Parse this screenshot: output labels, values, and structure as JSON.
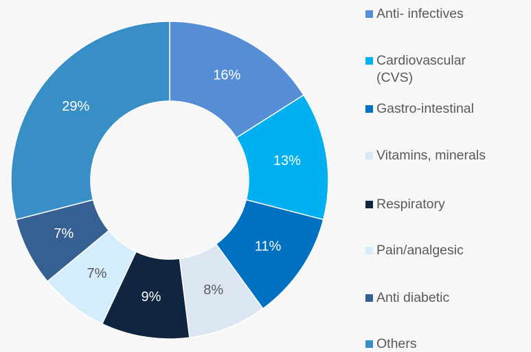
{
  "chart_data": {
    "type": "donut",
    "categories": [
      "Anti- infectives",
      "Cardiovascular (CVS)",
      "Gastro-intestinal",
      "Vitamins, minerals",
      "Respiratory",
      "Pain/analgesic",
      "Anti diabetic",
      "Others"
    ],
    "values": [
      16,
      13,
      11,
      8,
      9,
      7,
      7,
      29
    ],
    "value_labels": [
      "16%",
      "13%",
      "11%",
      "8%",
      "9%",
      "7%",
      "7%",
      "29%"
    ],
    "colors": [
      "#558ed5",
      "#00b0f0",
      "#0070c0",
      "#dce6f2",
      "#10253f",
      "#d3edfb",
      "#376092",
      "#378fc5"
    ],
    "legend": "right"
  }
}
